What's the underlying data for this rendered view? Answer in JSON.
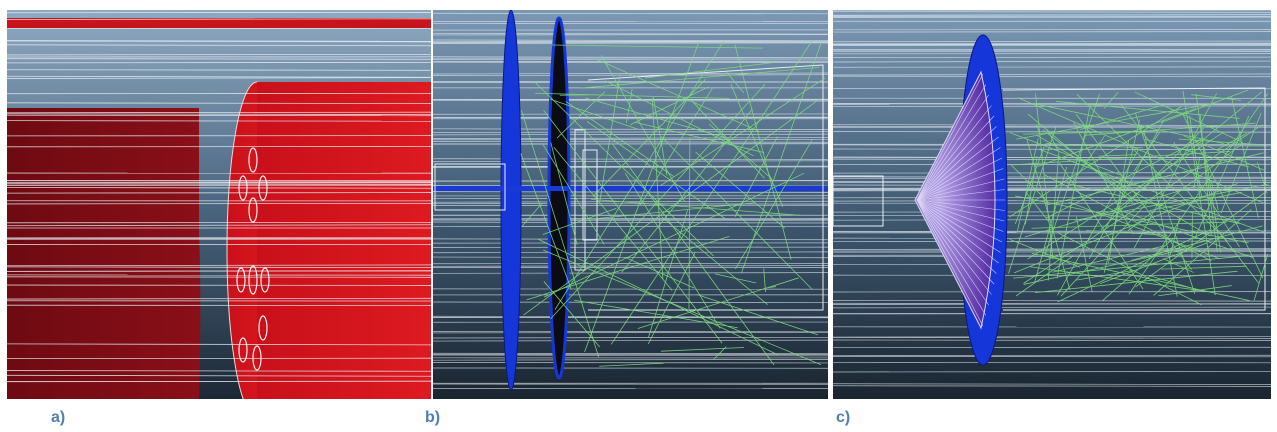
{
  "panels": [
    {
      "id": "a",
      "caption": "a)"
    },
    {
      "id": "b",
      "caption": "b)"
    },
    {
      "id": "c",
      "caption": "c)"
    }
  ],
  "colors": {
    "background_top": "#7b98b4",
    "background_bottom": "#1e2a36",
    "rays": "#e8eef3",
    "red_cylinder_dark": "#7a0c14",
    "red_cylinder_bright": "#d8141c",
    "blue_disc": "#1536d8",
    "green_rays": "#7ddf7a",
    "purple_cone": "#5a2eb4"
  }
}
